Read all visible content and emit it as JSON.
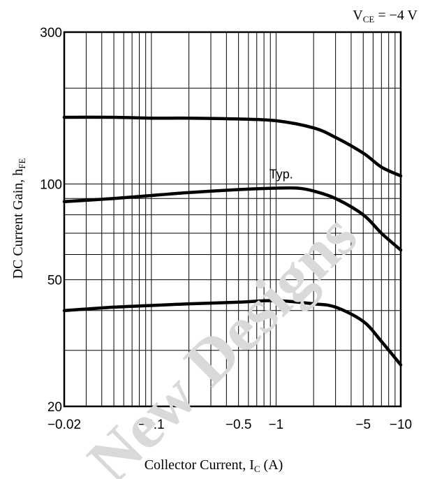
{
  "chart_data": {
    "type": "line",
    "title": "",
    "condition": {
      "var": "V",
      "sub": "CE",
      "rest": " = −4 V"
    },
    "xlabel": {
      "main": "Collector Current, I",
      "sub": "C",
      "unit": " (A)"
    },
    "ylabel": {
      "main": "DC Current Gain, h",
      "sub": "FE"
    },
    "xscale": "log",
    "yscale": "log",
    "xlim": [
      -0.02,
      -10
    ],
    "ylim": [
      20,
      300
    ],
    "x_ticks": [
      {
        "value": -0.02,
        "label": "−0.02"
      },
      {
        "value": -0.1,
        "label": "−0.1"
      },
      {
        "value": -0.5,
        "label": "−0.5"
      },
      {
        "value": -1,
        "label": "−1"
      },
      {
        "value": -5,
        "label": "−5"
      },
      {
        "value": -10,
        "label": "−10"
      }
    ],
    "y_ticks": [
      {
        "value": 20,
        "label": "20"
      },
      {
        "value": 50,
        "label": "50"
      },
      {
        "value": 100,
        "label": "100"
      },
      {
        "value": 300,
        "label": "300"
      }
    ],
    "grid": true,
    "annotations": [
      {
        "text": "Typ.",
        "x": -1.1,
        "y": 104
      }
    ],
    "watermark": "New Designs",
    "series": [
      {
        "x": [
          -0.02,
          -0.05,
          -0.1,
          -0.2,
          -0.5,
          -1,
          -2,
          -3,
          -5,
          -7,
          -10
        ],
        "y": [
          162,
          162,
          161,
          161,
          160,
          158,
          150,
          140,
          125,
          113,
          106
        ]
      },
      {
        "x": [
          -0.02,
          -0.05,
          -0.1,
          -0.2,
          -0.5,
          -1,
          -1.5,
          -2,
          -3,
          -5,
          -7,
          -10
        ],
        "y": [
          88,
          90,
          92,
          94,
          96,
          97,
          97,
          95,
          90,
          80,
          70,
          62
        ]
      },
      {
        "x": [
          -0.02,
          -0.05,
          -0.1,
          -0.2,
          -0.5,
          -1,
          -2,
          -3,
          -5,
          -7,
          -10
        ],
        "y": [
          40,
          41,
          41.5,
          42,
          42.5,
          43,
          42,
          41,
          37,
          32,
          27
        ]
      }
    ]
  }
}
